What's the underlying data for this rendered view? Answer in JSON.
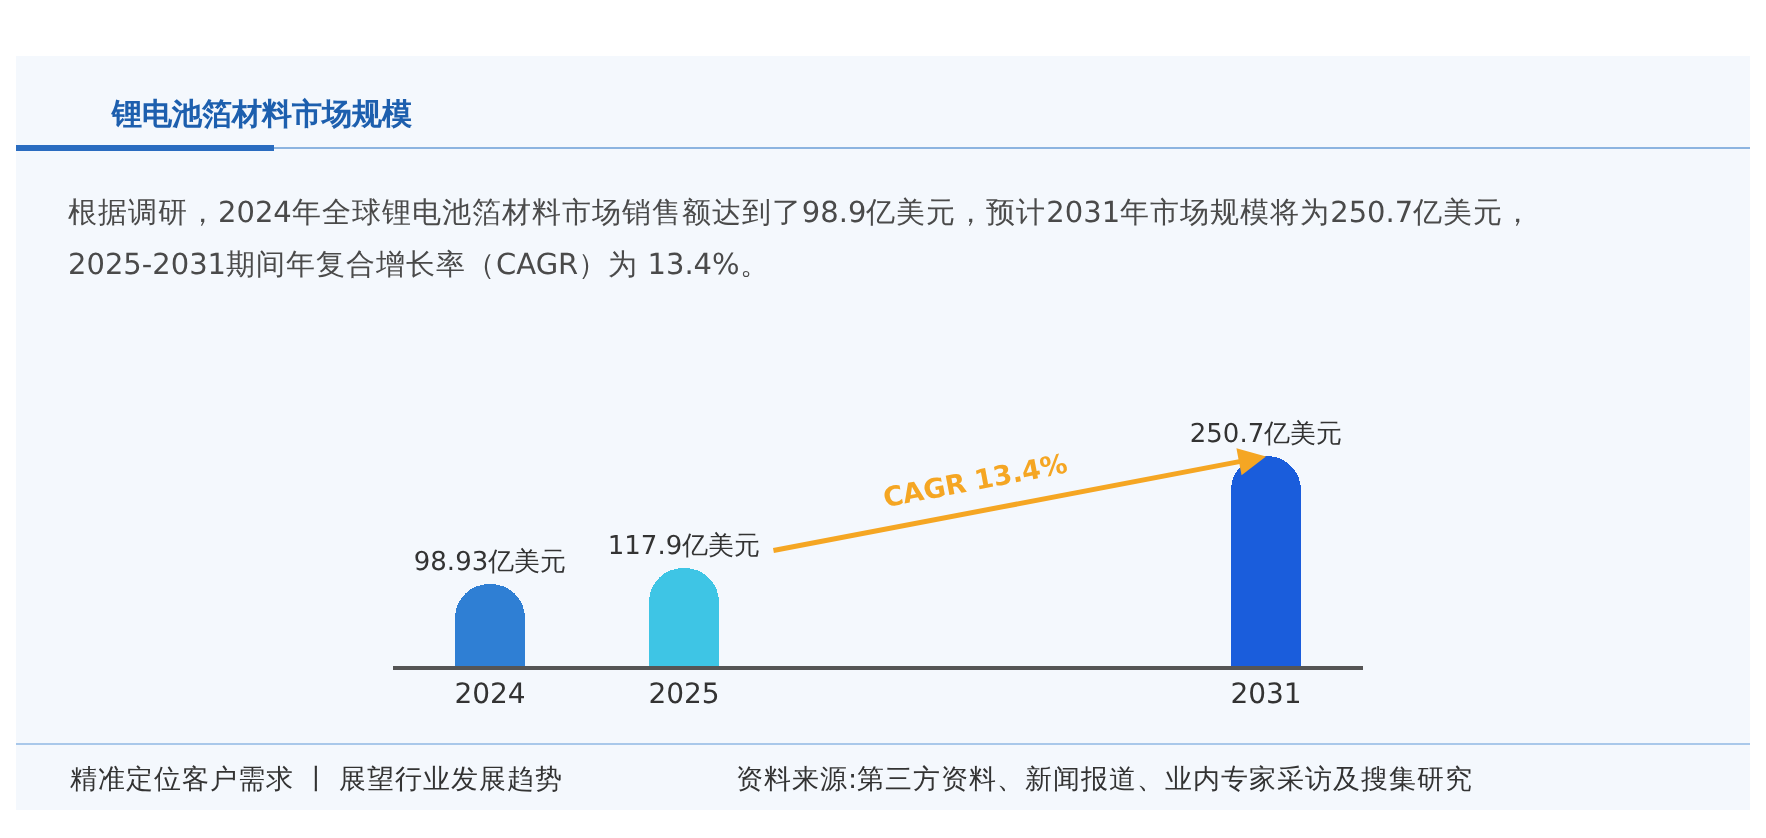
{
  "chart_data": {
    "type": "bar",
    "title": "锂电池箔材料市场规模",
    "subtitle": "根据调研，2024年全球锂电池箔材料市场销售额达到了98.9亿美元，预计2031年市场规模将为250.7亿美元，\n2025-2031期间年复合增长率（CAGR）为 13.4%。",
    "categories": [
      "2024",
      "2025",
      null,
      null,
      "2031"
    ],
    "values": [
      98.93,
      117.9,
      null,
      null,
      250.7
    ],
    "colors": [
      "#2f7fd4",
      "#3ec5e5",
      null,
      null,
      "#1a5ddc"
    ],
    "value_labels": [
      "98.93亿美元",
      "117.9亿美元",
      null,
      null,
      "250.7亿美元"
    ],
    "annotations": [
      "CAGR 13.4%",
      "精准定位客户需求 丨 展望行业发展趋势",
      "资料来源:第三方资料、新闻报道、业内专家采访及搜集研究"
    ]
  }
}
